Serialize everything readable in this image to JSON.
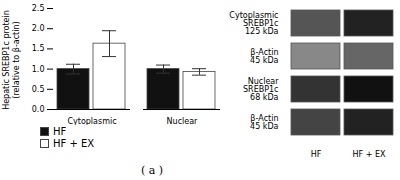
{
  "chart_data": [
    {
      "type": "bar",
      "categories": [
        "Cytoplasmic",
        "Nuclear"
      ],
      "series": [
        {
          "name": "HF",
          "color": "#111111",
          "values": [
            1.0,
            1.0
          ],
          "errors": [
            0.12,
            0.1
          ]
        },
        {
          "name": "HF + EX",
          "color": "#ffffff",
          "values": [
            1.63,
            0.93
          ],
          "errors": [
            0.32,
            0.08
          ]
        }
      ],
      "ylabel": "Hepatic SREBP1c protein\n(relative to β-actin)",
      "ylim": [
        0,
        2.5
      ],
      "yticks": [
        {
          "value": 0,
          "label": "0.0"
        },
        {
          "value": 0.5,
          "label": "0.5"
        },
        {
          "value": 1,
          "label": "1.0"
        },
        {
          "value": 1.5,
          "label": "1.5"
        },
        {
          "value": 2,
          "label": "2.0"
        },
        {
          "value": 2.5,
          "label": "2.5"
        }
      ],
      "legend": "bottom",
      "annotations": [
        "( a )"
      ]
    },
    {
      "type": "blot",
      "categories": [
        "Cytoplasmic\nSREBP1c",
        "β-Actin",
        "Nuclear\nSREBP1c",
        "β-Actin"
      ],
      "annotations": [
        "125 kDa",
        "45 kDa",
        "68 kDa",
        "45 kDa"
      ],
      "series": [
        {
          "name": "HF",
          "colors": [
            "#555555",
            "#888888",
            "#333333",
            "#444444"
          ]
        },
        {
          "name": "HF + EX",
          "colors": [
            "#222222",
            "#666666",
            "#111111",
            "#222222"
          ]
        }
      ]
    }
  ]
}
